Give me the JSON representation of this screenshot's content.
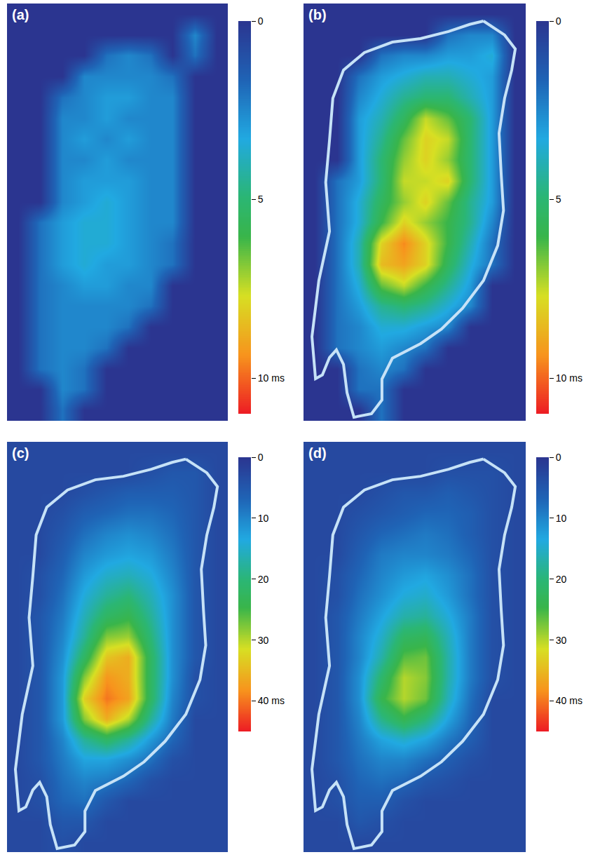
{
  "chart_data": [
    {
      "type": "heatmap",
      "title": "(a)",
      "tick_labels": false,
      "color_range": [
        0,
        11
      ],
      "color_ticks": [
        0,
        5,
        {
          "value": 10,
          "label": "10 ms"
        }
      ],
      "z": [
        [
          0,
          0,
          0,
          0,
          0,
          0,
          0,
          0,
          0,
          0
        ],
        [
          0,
          0,
          0,
          0,
          0,
          0,
          0,
          0,
          2.5,
          0
        ],
        [
          0,
          0,
          0,
          0,
          2,
          2.5,
          2,
          0,
          2,
          0
        ],
        [
          0,
          0,
          0,
          2.5,
          2.5,
          2.5,
          2.5,
          2,
          0,
          0
        ],
        [
          0,
          0,
          2,
          2.5,
          3,
          3,
          2.5,
          2.5,
          0,
          0
        ],
        [
          0,
          0,
          2.5,
          2.5,
          3,
          2.5,
          2.5,
          2.5,
          0,
          0
        ],
        [
          0,
          0,
          2.5,
          3,
          2.5,
          3,
          2.5,
          2.5,
          0,
          0
        ],
        [
          0,
          0,
          2.5,
          2.5,
          3,
          2.5,
          2.5,
          2.5,
          0,
          0
        ],
        [
          0,
          0,
          2.5,
          3,
          3,
          3,
          2.5,
          2.5,
          0,
          0
        ],
        [
          0,
          0,
          2.5,
          3,
          3.5,
          3,
          2.5,
          2.5,
          0,
          0
        ],
        [
          0,
          2,
          3,
          3.5,
          3.5,
          3,
          2.5,
          2.5,
          0,
          0
        ],
        [
          0,
          2,
          3,
          3.5,
          3.5,
          3,
          2.5,
          2,
          0,
          0
        ],
        [
          0,
          2,
          3,
          3.5,
          3,
          3,
          2.5,
          2,
          0,
          0
        ],
        [
          0,
          2,
          2.5,
          3,
          3,
          2.5,
          2.5,
          0,
          0,
          0
        ],
        [
          0,
          2,
          2.5,
          2.5,
          2.5,
          2.5,
          2,
          0,
          0,
          0
        ],
        [
          0,
          2,
          2.5,
          2.5,
          2.5,
          2,
          0,
          0,
          0,
          0
        ],
        [
          0,
          2,
          2.5,
          2.5,
          2,
          0,
          0,
          0,
          0,
          0
        ],
        [
          0,
          2,
          2.5,
          2,
          0,
          0,
          0,
          0,
          0,
          0
        ],
        [
          0,
          0,
          2.5,
          2,
          0,
          0,
          0,
          0,
          0,
          0
        ],
        [
          0,
          0,
          2,
          0,
          0,
          0,
          0,
          0,
          0,
          0
        ]
      ]
    },
    {
      "type": "heatmap",
      "title": "(b)",
      "tick_labels": false,
      "color_range": [
        0,
        11
      ],
      "color_ticks": [
        0,
        5,
        {
          "value": 10,
          "label": "10 ms"
        }
      ],
      "outline": {
        "x": [
          8.1,
          9.05,
          9.53,
          9.37,
          9.05,
          8.8,
          8.9,
          9.0,
          8.74,
          8.1,
          7.16,
          6.21,
          5.27,
          4.0,
          3.53,
          3.53,
          3.06,
          2.27,
          1.96,
          1.8,
          1.48,
          1.17,
          0.85,
          0.54,
          0.38,
          0.69,
          1.17,
          1.0,
          1.17,
          1.32,
          1.8,
          2.74,
          4.0,
          5.27,
          6.53,
          7.48
        ],
        "y": [
          0.84,
          1.51,
          2.18,
          3.19,
          4.54,
          6.22,
          8.24,
          9.92,
          11.6,
          13.28,
          14.6,
          15.6,
          16.3,
          17.0,
          18.0,
          19.0,
          19.66,
          19.83,
          18.66,
          17.3,
          16.6,
          16.97,
          17.8,
          17.98,
          15.97,
          13.28,
          10.92,
          8.57,
          6.55,
          4.54,
          3.19,
          2.35,
          1.85,
          1.68,
          1.34,
          1.0
        ]
      },
      "z": [
        [
          0,
          0,
          0,
          0,
          0,
          0,
          0,
          0,
          0,
          0
        ],
        [
          0,
          0,
          0,
          0,
          0,
          0,
          2,
          2.5,
          2.5,
          0
        ],
        [
          0,
          0,
          0,
          2,
          2.5,
          2.5,
          3,
          3,
          3.5,
          0
        ],
        [
          0,
          0,
          2,
          3,
          3.5,
          4,
          4,
          3.5,
          3,
          0
        ],
        [
          0,
          0,
          2.5,
          3.5,
          4.5,
          5,
          5,
          4,
          3,
          0
        ],
        [
          0,
          0,
          3,
          4,
          5.5,
          7.5,
          6.5,
          5,
          3,
          0
        ],
        [
          0,
          0,
          3,
          4.5,
          6.5,
          8,
          7.5,
          5,
          3,
          0
        ],
        [
          0,
          0,
          3,
          5,
          7,
          8,
          7,
          5,
          3,
          0
        ],
        [
          0,
          2,
          3,
          5,
          7.5,
          7.5,
          8,
          5,
          3,
          0
        ],
        [
          0,
          2,
          3.5,
          5.5,
          7,
          8,
          6.5,
          4.5,
          3,
          0
        ],
        [
          0,
          2,
          3.5,
          6,
          8,
          7,
          6,
          4.5,
          2.5,
          0
        ],
        [
          0,
          2,
          4,
          8,
          9.5,
          8,
          6,
          4,
          2,
          0
        ],
        [
          0,
          2,
          4,
          8.5,
          9,
          8,
          5.5,
          3.5,
          2,
          0
        ],
        [
          0,
          2,
          3.5,
          6.5,
          7.5,
          6,
          4.5,
          3,
          0,
          0
        ],
        [
          0,
          2,
          3,
          4.5,
          5,
          4.5,
          3.5,
          2.5,
          0,
          0
        ],
        [
          0,
          2,
          2.5,
          3.5,
          3.5,
          3,
          2.5,
          0,
          0,
          0
        ],
        [
          0,
          2,
          2.5,
          3,
          2.5,
          2,
          0,
          0,
          0,
          0
        ],
        [
          0,
          0,
          2,
          2.5,
          2,
          0,
          0,
          0,
          0,
          0
        ],
        [
          0,
          0,
          2,
          2,
          0,
          0,
          0,
          0,
          0,
          0
        ],
        [
          0,
          0,
          0,
          2,
          0,
          0,
          0,
          0,
          0,
          0
        ]
      ]
    },
    {
      "type": "heatmap",
      "title": "(c)",
      "tick_labels": false,
      "color_range": [
        0,
        45
      ],
      "color_ticks": [
        0,
        10,
        20,
        30,
        {
          "value": 40,
          "label": "40 ms"
        }
      ],
      "outline": {
        "x": [
          8.1,
          9.05,
          9.53,
          9.37,
          9.05,
          8.8,
          8.9,
          9.0,
          8.74,
          8.1,
          7.16,
          6.21,
          5.27,
          4.0,
          3.53,
          3.53,
          3.06,
          2.27,
          1.96,
          1.8,
          1.48,
          1.17,
          0.85,
          0.54,
          0.38,
          0.69,
          1.17,
          1.0,
          1.17,
          1.32,
          1.8,
          2.74,
          4.0,
          5.27,
          6.53,
          7.48
        ],
        "y": [
          0.84,
          1.51,
          2.18,
          3.19,
          4.54,
          6.22,
          8.24,
          9.92,
          11.6,
          13.28,
          14.6,
          15.6,
          16.3,
          17.0,
          18.0,
          19.0,
          19.66,
          19.83,
          18.66,
          17.3,
          16.6,
          16.97,
          17.8,
          17.98,
          15.97,
          13.28,
          10.92,
          8.57,
          6.55,
          4.54,
          3.19,
          2.35,
          1.85,
          1.68,
          1.34,
          1.0
        ]
      },
      "z": [
        [
          3,
          3,
          3,
          3,
          3,
          3,
          3,
          3,
          3,
          3
        ],
        [
          3,
          3,
          3,
          3,
          3,
          3,
          4,
          5,
          5,
          3
        ],
        [
          3,
          3,
          3,
          4,
          5,
          6,
          6,
          6,
          5,
          3
        ],
        [
          3,
          3,
          4,
          6,
          7,
          8,
          8,
          7,
          5,
          3
        ],
        [
          3,
          3,
          5,
          8,
          10,
          11,
          10,
          8,
          5,
          3
        ],
        [
          3,
          3,
          6,
          10,
          12,
          13,
          12,
          9,
          5,
          3
        ],
        [
          3,
          4,
          7,
          12,
          15,
          16,
          14,
          10,
          5,
          3
        ],
        [
          3,
          4,
          8,
          14,
          18,
          20,
          16,
          11,
          5,
          3
        ],
        [
          3,
          5,
          9,
          16,
          22,
          24,
          18,
          11,
          5,
          3
        ],
        [
          3,
          5,
          10,
          18,
          28,
          29,
          20,
          11,
          5,
          3
        ],
        [
          3,
          5,
          11,
          22,
          34,
          36,
          22,
          11,
          5,
          3
        ],
        [
          3,
          5,
          12,
          28,
          38,
          36,
          22,
          11,
          4,
          3
        ],
        [
          3,
          5,
          12,
          33,
          40,
          37,
          22,
          10,
          4,
          3
        ],
        [
          3,
          5,
          12,
          28,
          36,
          30,
          18,
          9,
          3,
          3
        ],
        [
          3,
          5,
          10,
          18,
          22,
          18,
          12,
          7,
          3,
          3
        ],
        [
          3,
          5,
          9,
          13,
          13,
          11,
          8,
          4,
          3,
          3
        ],
        [
          3,
          4,
          8,
          10,
          9,
          7,
          4,
          3,
          3,
          3
        ],
        [
          3,
          4,
          7,
          8,
          5,
          3,
          3,
          3,
          3,
          3
        ],
        [
          3,
          3,
          5,
          5,
          3,
          3,
          3,
          3,
          3,
          3
        ],
        [
          3,
          3,
          4,
          3,
          3,
          3,
          3,
          3,
          3,
          3
        ]
      ]
    },
    {
      "type": "heatmap",
      "title": "(d)",
      "tick_labels": false,
      "color_range": [
        0,
        45
      ],
      "color_ticks": [
        0,
        10,
        20,
        30,
        {
          "value": 40,
          "label": "40 ms"
        }
      ],
      "outline": {
        "x": [
          8.1,
          9.05,
          9.53,
          9.37,
          9.05,
          8.8,
          8.9,
          9.0,
          8.74,
          8.1,
          7.16,
          6.21,
          5.27,
          4.0,
          3.53,
          3.53,
          3.06,
          2.27,
          1.96,
          1.8,
          1.48,
          1.17,
          0.85,
          0.54,
          0.38,
          0.69,
          1.17,
          1.0,
          1.17,
          1.32,
          1.8,
          2.74,
          4.0,
          5.27,
          6.53,
          7.48
        ],
        "y": [
          0.84,
          1.51,
          2.18,
          3.19,
          4.54,
          6.22,
          8.24,
          9.92,
          11.6,
          13.28,
          14.6,
          15.6,
          16.3,
          17.0,
          18.0,
          19.0,
          19.66,
          19.83,
          18.66,
          17.3,
          16.6,
          16.97,
          17.8,
          17.98,
          15.97,
          13.28,
          10.92,
          8.57,
          6.55,
          4.54,
          3.19,
          2.35,
          1.85,
          1.68,
          1.34,
          1.0
        ]
      },
      "z": [
        [
          3,
          3,
          3,
          3,
          3,
          3,
          3,
          3,
          3,
          3
        ],
        [
          3,
          3,
          3,
          3,
          3,
          3,
          4,
          4,
          4,
          3
        ],
        [
          3,
          3,
          3,
          4,
          5,
          5,
          6,
          5,
          4,
          3
        ],
        [
          3,
          3,
          4,
          5,
          6,
          7,
          7,
          6,
          4,
          3
        ],
        [
          3,
          3,
          5,
          7,
          8,
          9,
          8,
          6,
          4,
          3
        ],
        [
          3,
          3,
          6,
          9,
          10,
          10,
          9,
          7,
          4,
          3
        ],
        [
          3,
          4,
          7,
          10,
          12,
          13,
          11,
          8,
          4,
          3
        ],
        [
          3,
          4,
          8,
          11,
          14,
          15,
          12,
          8,
          4,
          3
        ],
        [
          3,
          5,
          9,
          13,
          17,
          18,
          14,
          9,
          4,
          3
        ],
        [
          3,
          5,
          10,
          15,
          22,
          23,
          16,
          9,
          4,
          3
        ],
        [
          3,
          5,
          10,
          17,
          26,
          27,
          17,
          9,
          4,
          3
        ],
        [
          3,
          5,
          11,
          21,
          30,
          28,
          17,
          9,
          4,
          3
        ],
        [
          3,
          5,
          11,
          24,
          30,
          27,
          16,
          8,
          3,
          3
        ],
        [
          3,
          5,
          10,
          19,
          24,
          20,
          13,
          7,
          3,
          3
        ],
        [
          3,
          5,
          9,
          13,
          15,
          13,
          9,
          6,
          3,
          3
        ],
        [
          3,
          5,
          8,
          10,
          10,
          8,
          6,
          4,
          3,
          3
        ],
        [
          3,
          4,
          7,
          8,
          7,
          5,
          4,
          3,
          3,
          3
        ],
        [
          3,
          4,
          6,
          6,
          4,
          3,
          3,
          3,
          3,
          3
        ],
        [
          3,
          3,
          5,
          4,
          3,
          3,
          3,
          3,
          3,
          3
        ],
        [
          3,
          3,
          3,
          3,
          3,
          3,
          3,
          3,
          3,
          3
        ]
      ]
    }
  ]
}
